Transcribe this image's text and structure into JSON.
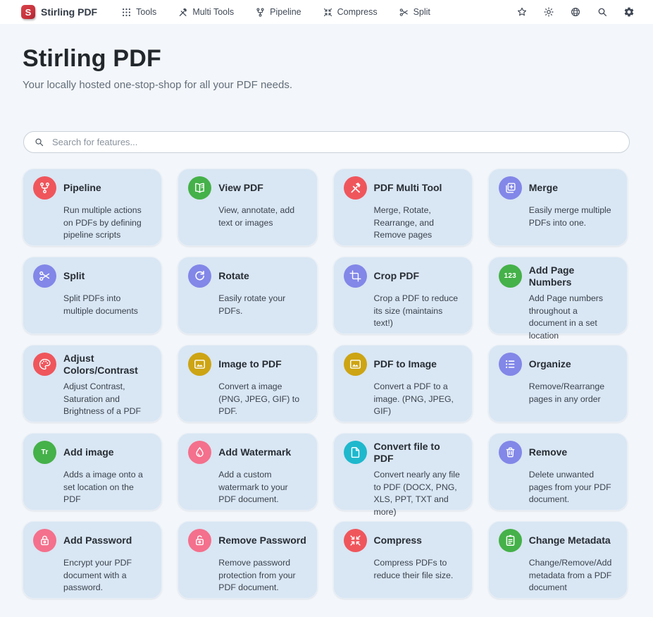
{
  "navbar": {
    "brand": "Stirling PDF",
    "logo_letter": "S",
    "items": [
      {
        "label": "Tools",
        "icon": "grid-icon"
      },
      {
        "label": "Multi Tools",
        "icon": "tools-icon"
      },
      {
        "label": "Pipeline",
        "icon": "pipeline-icon"
      },
      {
        "label": "Compress",
        "icon": "compress-icon"
      },
      {
        "label": "Split",
        "icon": "scissors-icon"
      }
    ],
    "right_icons": [
      "star-icon",
      "sun-icon",
      "globe-icon",
      "search-icon",
      "gear-icon"
    ]
  },
  "hero": {
    "title": "Stirling PDF",
    "subtitle": "Your locally hosted one-stop-shop for all your PDF needs."
  },
  "search": {
    "placeholder": "Search for features...",
    "icon": "search-icon"
  },
  "colors": {
    "red": "#ef565c",
    "green": "#45b149",
    "purple": "#8287e8",
    "gold": "#cda413",
    "cyan": "#1eb8cd",
    "pink": "#f4708c",
    "logo_red": "#c5303a",
    "card_bg": "#d9e6f3"
  },
  "cards": {
    "items": [
      {
        "title": "Pipeline",
        "desc": "Run multiple actions on PDFs by defining pipeline scripts",
        "icon": "pipeline-icon",
        "color": "red"
      },
      {
        "title": "View PDF",
        "desc": "View, annotate, add text or images",
        "icon": "book-icon",
        "color": "green"
      },
      {
        "title": "PDF Multi Tool",
        "desc": "Merge, Rotate, Rearrange, and Remove pages",
        "icon": "tools-icon",
        "color": "red"
      },
      {
        "title": "Merge",
        "desc": "Easily merge multiple PDFs into one.",
        "icon": "merge-icon",
        "color": "purple"
      },
      {
        "title": "Split",
        "desc": "Split PDFs into multiple documents",
        "icon": "scissors-icon",
        "color": "purple"
      },
      {
        "title": "Rotate",
        "desc": "Easily rotate your PDFs.",
        "icon": "rotate-icon",
        "color": "purple"
      },
      {
        "title": "Crop PDF",
        "desc": "Crop a PDF to reduce its size (maintains text!)",
        "icon": "crop-icon",
        "color": "purple"
      },
      {
        "title": "Add Page Numbers",
        "desc": "Add Page numbers throughout a document in a set location",
        "icon": "numbers-123-icon",
        "color": "green"
      },
      {
        "title": "Adjust Colors/Contrast",
        "desc": "Adjust Contrast, Saturation and Brightness of a PDF",
        "icon": "palette-icon",
        "color": "red"
      },
      {
        "title": "Image to PDF",
        "desc": "Convert a image (PNG, JPEG, GIF) to PDF.",
        "icon": "image-icon",
        "color": "gold"
      },
      {
        "title": "PDF to Image",
        "desc": "Convert a PDF to a image. (PNG, JPEG, GIF)",
        "icon": "image-icon",
        "color": "gold"
      },
      {
        "title": "Organize",
        "desc": "Remove/Rearrange pages in any order",
        "icon": "list-icon",
        "color": "purple"
      },
      {
        "title": "Add image",
        "desc": "Adds a image onto a set location on the PDF",
        "icon": "text-Tr-icon",
        "color": "green"
      },
      {
        "title": "Add Watermark",
        "desc": "Add a custom watermark to your PDF document.",
        "icon": "droplet-icon",
        "color": "pink"
      },
      {
        "title": "Convert file to PDF",
        "desc": "Convert nearly any file to PDF (DOCX, PNG, XLS, PPT, TXT and more)",
        "icon": "file-icon",
        "color": "cyan"
      },
      {
        "title": "Remove",
        "desc": "Delete unwanted pages from your PDF document.",
        "icon": "trash-icon",
        "color": "purple"
      },
      {
        "title": "Add Password",
        "desc": "Encrypt your PDF document with a password.",
        "icon": "lock-icon",
        "color": "pink"
      },
      {
        "title": "Remove Password",
        "desc": "Remove password protection from your PDF document.",
        "icon": "lock-open-icon",
        "color": "pink"
      },
      {
        "title": "Compress",
        "desc": "Compress PDFs to reduce their file size.",
        "icon": "compress-icon",
        "color": "red"
      },
      {
        "title": "Change Metadata",
        "desc": "Change/Remove/Add metadata from a PDF document",
        "icon": "clipboard-icon",
        "color": "green"
      }
    ]
  }
}
